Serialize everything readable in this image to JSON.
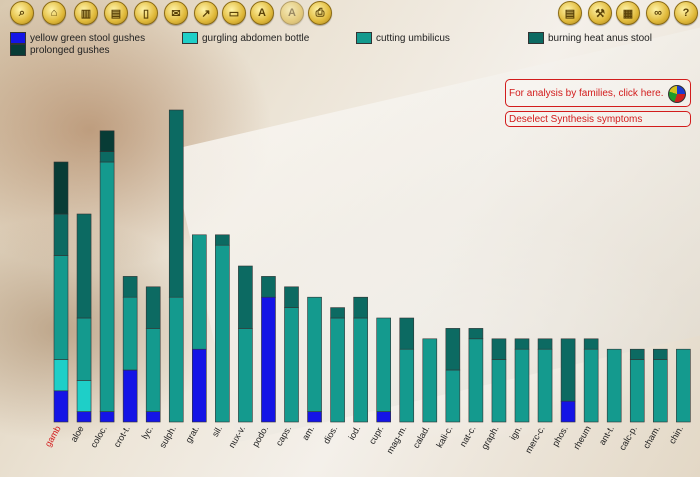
{
  "toolbar": {
    "left_icons": [
      "search-icon",
      "home-icon",
      "columns-icon",
      "document-icon",
      "book-icon",
      "mail-icon",
      "graph-icon",
      "folder-icon",
      "letter-a-icon",
      "letter-a-dim-icon",
      "printer-icon"
    ],
    "right_icons": [
      "notepad-icon",
      "tools-icon",
      "calendar-icon",
      "link-icon",
      "help-icon"
    ],
    "letter_a": "A",
    "help": "?"
  },
  "links": {
    "analysis": "For analysis by families, click here.",
    "deselect": "Deselect Synthesis symptoms"
  },
  "colors": {
    "accent_red": "#d21c1c",
    "yellow_green_stool_gushes": "#1414e6",
    "gurgling_abdomen_bottle": "#1ecfc8",
    "cutting_umbilicus": "#149a8e",
    "burning_heat_anus_stool": "#0c6a62",
    "prolonged_gushes": "#083c36"
  },
  "chart_data": {
    "type": "bar",
    "stacked": true,
    "categories": [
      "gamb",
      "aloe",
      "coloc.",
      "crot-t.",
      "lyc.",
      "sulph.",
      "grat.",
      "sil.",
      "nux-v.",
      "podo.",
      "caps.",
      "am.",
      "dios.",
      "iod.",
      "cupr.",
      "mag-m.",
      "calad.",
      "kali-c.",
      "nat-c.",
      "graph.",
      "ign.",
      "merc-c.",
      "phos.",
      "rheum",
      "ant-t.",
      "calc-p.",
      "cham.",
      "chin."
    ],
    "series": [
      {
        "name": "yellow green stool gushes",
        "values": [
          3,
          1,
          1,
          5,
          1,
          0,
          7,
          0,
          0,
          12,
          0,
          1,
          0,
          0,
          1,
          0,
          0,
          0,
          0,
          0,
          0,
          0,
          2,
          0,
          0,
          0,
          0,
          0
        ]
      },
      {
        "name": "gurgling abdomen bottle",
        "values": [
          3,
          3,
          0,
          0,
          0,
          0,
          0,
          0,
          0,
          0,
          0,
          0,
          0,
          0,
          0,
          0,
          0,
          0,
          0,
          0,
          0,
          0,
          0,
          0,
          0,
          0,
          0,
          0
        ]
      },
      {
        "name": "cutting umbilicus",
        "values": [
          10,
          6,
          24,
          7,
          8,
          12,
          11,
          17,
          9,
          0,
          11,
          11,
          10,
          10,
          9,
          7,
          8,
          5,
          8,
          6,
          7,
          7,
          0,
          7,
          7,
          6,
          6,
          7
        ]
      },
      {
        "name": "burning heat anus stool",
        "values": [
          4,
          10,
          1,
          2,
          4,
          18,
          0,
          1,
          6,
          2,
          2,
          0,
          1,
          2,
          0,
          3,
          0,
          4,
          1,
          2,
          1,
          1,
          6,
          1,
          0,
          1,
          1,
          0
        ]
      },
      {
        "name": "prolonged gushes",
        "values": [
          5,
          0,
          2,
          0,
          0,
          0,
          0,
          0,
          0,
          0,
          0,
          0,
          0,
          0,
          0,
          0,
          0,
          0,
          0,
          0,
          0,
          0,
          0,
          0,
          0,
          0,
          0,
          0
        ]
      }
    ],
    "ylim": [
      0,
      32
    ],
    "legend_position": "top"
  }
}
